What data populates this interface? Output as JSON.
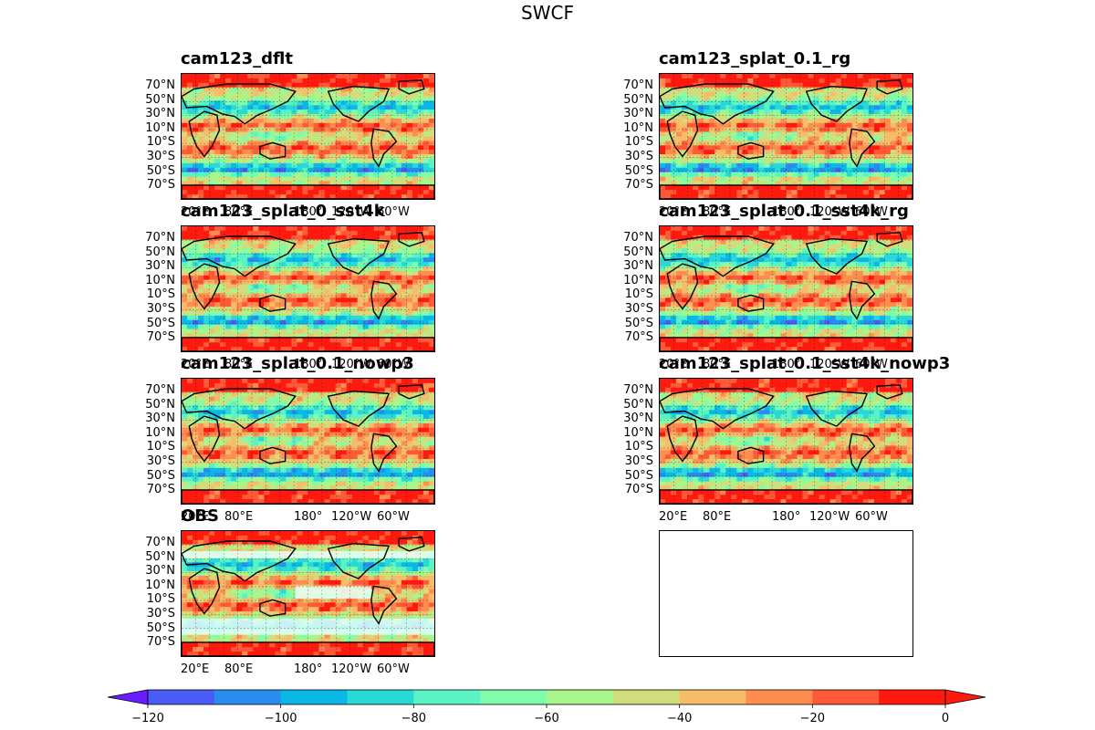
{
  "title": "SWCF",
  "chart_data": {
    "type": "heatmap",
    "description_units": "contoured global maps, colorbar levels",
    "colorbar": {
      "levels": [
        -130,
        -120,
        -110,
        -100,
        -90,
        -80,
        -70,
        -60,
        -50,
        -40,
        -30,
        -20,
        -10,
        0
      ],
      "tick_values": [
        -120,
        -100,
        -80,
        -60,
        -40,
        -20,
        0
      ],
      "tick_labels": [
        "−120",
        "−100",
        "−80",
        "−60",
        "−40",
        "−20",
        "0"
      ],
      "colors": [
        "#6a1bff",
        "#4a5cf5",
        "#2a8cf0",
        "#0ab8e8",
        "#2ad9d6",
        "#5bf3c4",
        "#80fcaa",
        "#a8f58c",
        "#d2dc7c",
        "#f5bd6a",
        "#ff8d50",
        "#ff5a38",
        "#ff1a10"
      ],
      "extend": "both"
    },
    "lat_ticks": [
      "70°N",
      "50°N",
      "30°N",
      "10°N",
      "10°S",
      "30°S",
      "50°S",
      "70°S"
    ],
    "lon_ticks": [
      "20°E",
      "80°E",
      "180°",
      "120°W",
      "60°W"
    ],
    "panels": [
      {
        "title": "cam123_dflt",
        "empty": false
      },
      {
        "title": "cam123_splat_0.1_rg",
        "empty": false
      },
      {
        "title": "cam123_splat_0_sst4k",
        "empty": false
      },
      {
        "title": "cam123_splat_0.1_sst4k_rg",
        "empty": false
      },
      {
        "title": "cam123_splat_0.1_nowp3",
        "empty": false
      },
      {
        "title": "cam123_splat_0.1_sst4k_nowp3",
        "empty": false
      },
      {
        "title": "OBS",
        "empty": false
      },
      {
        "title": "",
        "empty": true
      }
    ],
    "grid": true
  }
}
